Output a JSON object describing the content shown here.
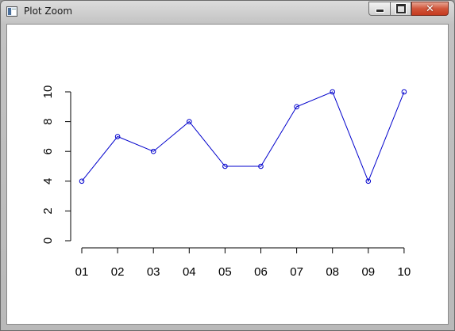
{
  "window": {
    "title": "Plot Zoom",
    "close_glyph": "✕"
  },
  "icons": {
    "app": "plot-window-icon",
    "minimize": "minimize-icon",
    "maximize": "maximize-icon",
    "close": "close-icon"
  },
  "colors": {
    "series_line": "#0000cc",
    "axis": "#000000"
  },
  "chart_data": {
    "type": "line",
    "categories": [
      "01",
      "02",
      "03",
      "04",
      "05",
      "06",
      "07",
      "08",
      "09",
      "10"
    ],
    "values": [
      4,
      7,
      6,
      8,
      5,
      5,
      9,
      10,
      4,
      10
    ],
    "yticks": [
      0,
      2,
      4,
      6,
      8,
      10
    ],
    "ylim": [
      0,
      10
    ],
    "markers": "open-circle",
    "grid": false,
    "title": "",
    "xlabel": "",
    "ylabel": ""
  }
}
